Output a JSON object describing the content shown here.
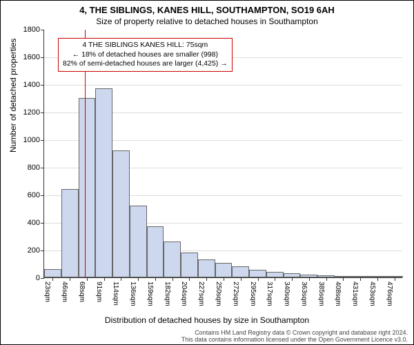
{
  "title": "4, THE SIBLINGS, KANES HILL, SOUTHAMPTON, SO19 6AH",
  "subtitle": "Size of property relative to detached houses in Southampton",
  "chart": {
    "type": "histogram",
    "ylabel": "Number of detached properties",
    "xlabel": "Distribution of detached houses by size in Southampton",
    "ymax": 1800,
    "ytick_step": 200,
    "yticks": [
      0,
      200,
      400,
      600,
      800,
      1000,
      1200,
      1400,
      1600,
      1800
    ],
    "xticks_labels": [
      "23sqm",
      "46sqm",
      "68sqm",
      "91sqm",
      "114sqm",
      "136sqm",
      "159sqm",
      "182sqm",
      "204sqm",
      "227sqm",
      "250sqm",
      "272sqm",
      "295sqm",
      "317sqm",
      "340sqm",
      "363sqm",
      "385sqm",
      "408sqm",
      "431sqm",
      "453sqm",
      "476sqm"
    ],
    "bars": [
      60,
      640,
      1300,
      1370,
      920,
      520,
      370,
      260,
      180,
      130,
      105,
      80,
      55,
      40,
      30,
      22,
      15,
      8,
      5,
      3,
      2
    ],
    "bar_color": "#cdd8ef",
    "bar_border": "#666666",
    "background_color": "#ffffff",
    "grid_color": "#dddddd",
    "title_fontsize": 13,
    "subtitle_fontsize": 12,
    "label_fontsize": 12,
    "tick_fontsize": 11,
    "reference_line": {
      "color": "#cc0000",
      "position_index": 2.4
    },
    "annotation": {
      "lines": [
        "4 THE SIBLINGS KANES HILL: 75sqm",
        "← 18% of detached houses are smaller (998)",
        "82% of semi-detached houses are larger (4,425) →"
      ],
      "border_color": "#cc0000"
    }
  },
  "footer": {
    "line1": "Contains HM Land Registry data © Crown copyright and database right 2024.",
    "line2": "This data contains information licensed under the Open Government Licence v3.0."
  }
}
